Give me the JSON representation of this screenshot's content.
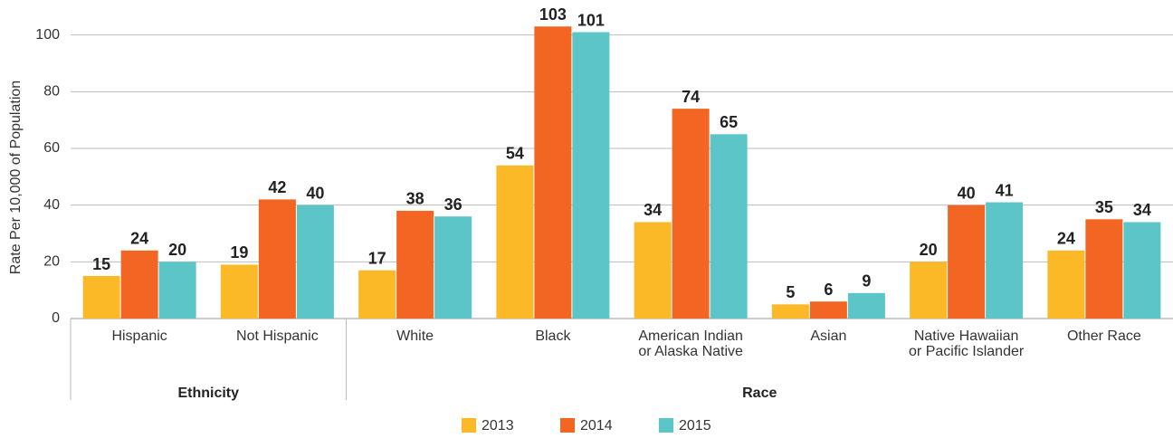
{
  "chart_data": {
    "type": "bar",
    "y_label": "Rate Per 10,000 of Population",
    "categories": [
      "Hispanic",
      "Not Hispanic",
      "White",
      "Black",
      "American Indian\nor Alaska Native",
      "Asian",
      "Native Hawaiian\nor Pacific Islander",
      "Other Race"
    ],
    "groups": [
      {
        "label": "Ethnicity",
        "count": 2
      },
      {
        "label": "Race",
        "count": 6
      }
    ],
    "series": [
      {
        "name": "2013",
        "color": "#fbb927",
        "values": [
          15,
          19,
          17,
          54,
          34,
          5,
          20,
          24
        ]
      },
      {
        "name": "2014",
        "color": "#f26522",
        "values": [
          24,
          42,
          38,
          103,
          74,
          6,
          40,
          35
        ]
      },
      {
        "name": "2015",
        "color": "#5bc5c8",
        "values": [
          20,
          40,
          36,
          101,
          65,
          9,
          41,
          34
        ]
      }
    ],
    "ylim": [
      0,
      105
    ],
    "yticks": [
      0,
      20,
      40,
      60,
      80,
      100
    ],
    "grid": true,
    "legend": "bottom"
  }
}
